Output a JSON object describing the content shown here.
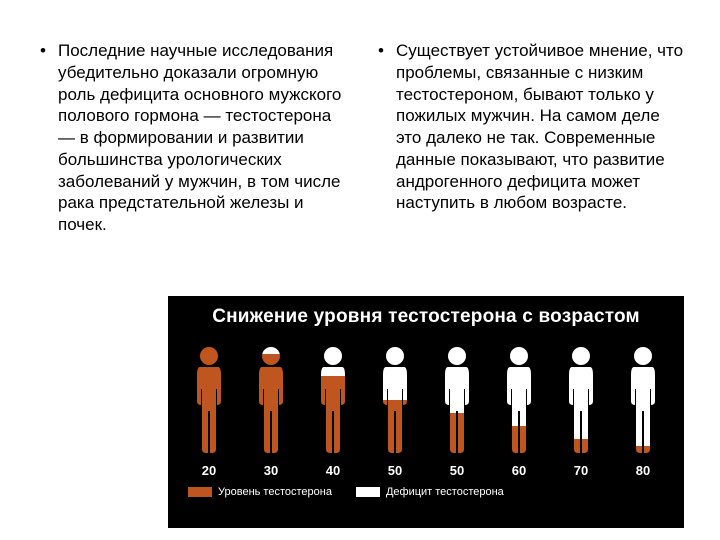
{
  "left_bullet": "Последние научные исследования убедительно доказали огромную роль дефицита основного мужского полового гормона — тестостерона — в формировании и развитии большинства урологических заболеваний у мужчин, в том числе рака предстательной железы и почек.",
  "right_bullet": "Существует устойчивое мнение, что проблемы, связанные с низким тестостероном, бывают только у пожилых мужчин. На самом деле это далеко не так. Современные данные показывают, что развитие андрогенного дефицита может наступить в любом возрасте.",
  "infographic": {
    "type": "infographic",
    "title": "Снижение уровня тестостерона с возрастом",
    "background_color": "#000000",
    "bar_color": "#c0561f",
    "deficit_color": "#ffffff",
    "title_fontsize": 19,
    "age_label_fontsize": 13,
    "legend_fontsize": 11,
    "figures": [
      {
        "age": "20",
        "level_pct": 100
      },
      {
        "age": "30",
        "level_pct": 92
      },
      {
        "age": "40",
        "level_pct": 72
      },
      {
        "age": "50",
        "level_pct": 50
      },
      {
        "age": "50",
        "level_pct": 38
      },
      {
        "age": "60",
        "level_pct": 26
      },
      {
        "age": "70",
        "level_pct": 15
      },
      {
        "age": "80",
        "level_pct": 8
      }
    ],
    "legend": {
      "level": "Уровень тестостерона",
      "deficit": "Дефицит тестостерона"
    }
  }
}
